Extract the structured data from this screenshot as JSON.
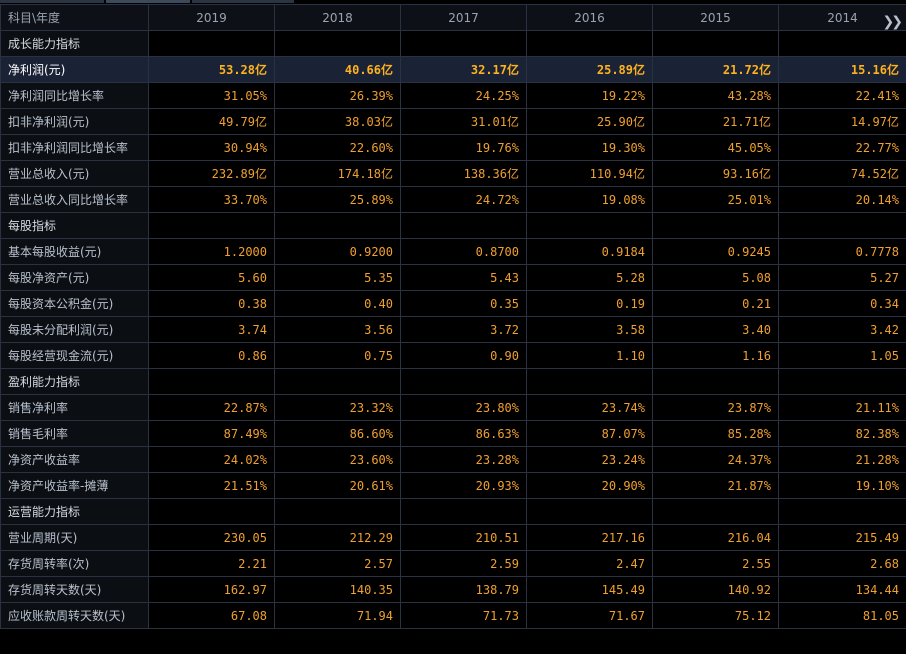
{
  "header": {
    "label": "科目\\年度",
    "years": [
      "2019",
      "2018",
      "2017",
      "2016",
      "2015",
      "2014"
    ],
    "more_icon": "double-chevron-right-icon"
  },
  "sections": [
    {
      "title": "成长能力指标",
      "rows": [
        {
          "label": "净利润(元)",
          "values": [
            "53.28亿",
            "40.66亿",
            "32.17亿",
            "25.89亿",
            "21.72亿",
            "15.16亿"
          ],
          "highlight": true
        },
        {
          "label": "净利润同比增长率",
          "values": [
            "31.05%",
            "26.39%",
            "24.25%",
            "19.22%",
            "43.28%",
            "22.41%"
          ]
        },
        {
          "label": "扣非净利润(元)",
          "values": [
            "49.79亿",
            "38.03亿",
            "31.01亿",
            "25.90亿",
            "21.71亿",
            "14.97亿"
          ]
        },
        {
          "label": "扣非净利润同比增长率",
          "values": [
            "30.94%",
            "22.60%",
            "19.76%",
            "19.30%",
            "45.05%",
            "22.77%"
          ]
        },
        {
          "label": "营业总收入(元)",
          "values": [
            "232.89亿",
            "174.18亿",
            "138.36亿",
            "110.94亿",
            "93.16亿",
            "74.52亿"
          ]
        },
        {
          "label": "营业总收入同比增长率",
          "values": [
            "33.70%",
            "25.89%",
            "24.72%",
            "19.08%",
            "25.01%",
            "20.14%"
          ]
        }
      ]
    },
    {
      "title": "每股指标",
      "rows": [
        {
          "label": "基本每股收益(元)",
          "values": [
            "1.2000",
            "0.9200",
            "0.8700",
            "0.9184",
            "0.9245",
            "0.7778"
          ]
        },
        {
          "label": "每股净资产(元)",
          "values": [
            "5.60",
            "5.35",
            "5.43",
            "5.28",
            "5.08",
            "5.27"
          ]
        },
        {
          "label": "每股资本公积金(元)",
          "values": [
            "0.38",
            "0.40",
            "0.35",
            "0.19",
            "0.21",
            "0.34"
          ]
        },
        {
          "label": "每股未分配利润(元)",
          "values": [
            "3.74",
            "3.56",
            "3.72",
            "3.58",
            "3.40",
            "3.42"
          ]
        },
        {
          "label": "每股经营现金流(元)",
          "values": [
            "0.86",
            "0.75",
            "0.90",
            "1.10",
            "1.16",
            "1.05"
          ]
        }
      ]
    },
    {
      "title": "盈利能力指标",
      "rows": [
        {
          "label": "销售净利率",
          "values": [
            "22.87%",
            "23.32%",
            "23.80%",
            "23.74%",
            "23.87%",
            "21.11%"
          ]
        },
        {
          "label": "销售毛利率",
          "values": [
            "87.49%",
            "86.60%",
            "86.63%",
            "87.07%",
            "85.28%",
            "82.38%"
          ]
        },
        {
          "label": "净资产收益率",
          "values": [
            "24.02%",
            "23.60%",
            "23.28%",
            "23.24%",
            "24.37%",
            "21.28%"
          ]
        },
        {
          "label": "净资产收益率-摊薄",
          "values": [
            "21.51%",
            "20.61%",
            "20.93%",
            "20.90%",
            "21.87%",
            "19.10%"
          ]
        }
      ]
    },
    {
      "title": "运营能力指标",
      "rows": [
        {
          "label": "营业周期(天)",
          "values": [
            "230.05",
            "212.29",
            "210.51",
            "217.16",
            "216.04",
            "215.49"
          ]
        },
        {
          "label": "存货周转率(次)",
          "values": [
            "2.21",
            "2.57",
            "2.59",
            "2.47",
            "2.55",
            "2.68"
          ]
        },
        {
          "label": "存货周转天数(天)",
          "values": [
            "162.97",
            "140.35",
            "138.79",
            "145.49",
            "140.92",
            "134.44"
          ]
        },
        {
          "label": "应收账款周转天数(天)",
          "values": [
            "67.08",
            "71.94",
            "71.73",
            "71.67",
            "75.12",
            "81.05"
          ]
        }
      ]
    }
  ],
  "colors": {
    "value": "#f0a030",
    "highlight_row": "#1a2236",
    "border": "#2a3140",
    "background": "#000000"
  }
}
